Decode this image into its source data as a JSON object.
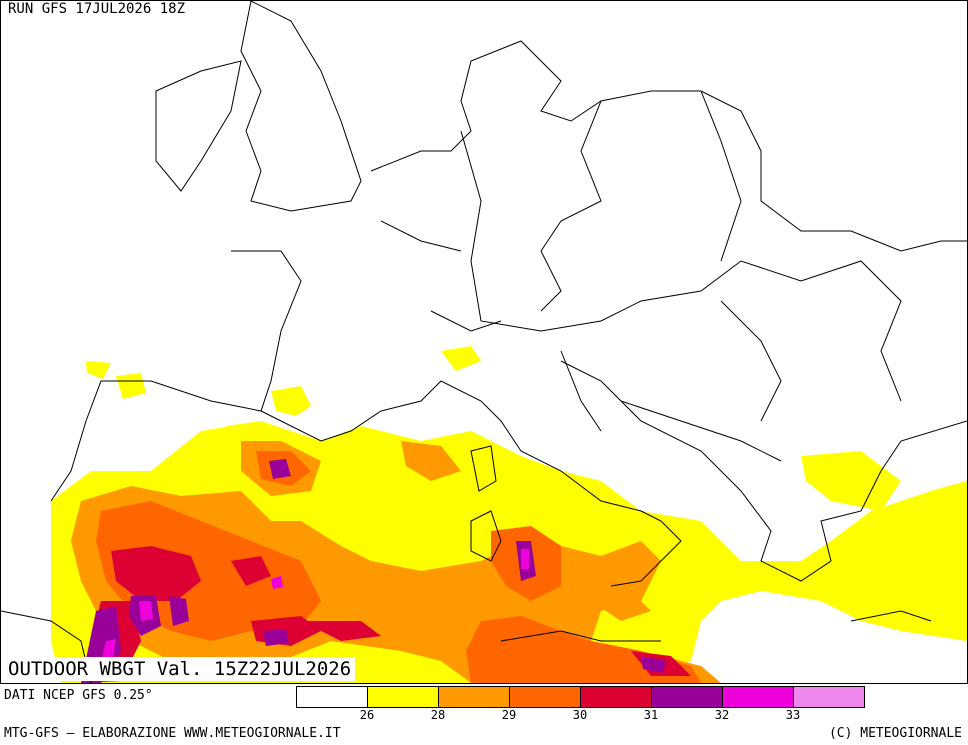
{
  "run_label": "RUN GFS 17JUL2026 18Z",
  "valid_label": "OUTDOOR WBGT Val. 15Z22JUL2026",
  "data_source": "DATI NCEP GFS 0.25°",
  "footer_left": "MTG-GFS – ELABORAZIONE WWW.METEOGIORNALE.IT",
  "footer_right": "(C) METEOGIORNALE",
  "legend": {
    "colors": [
      "#ffffff",
      "#ffff00",
      "#ff9900",
      "#ff6600",
      "#dd0033",
      "#990099",
      "#ee00dd",
      "#ee88ee"
    ],
    "ticks": [
      "26",
      "28",
      "29",
      "30",
      "31",
      "32",
      "33"
    ]
  }
}
